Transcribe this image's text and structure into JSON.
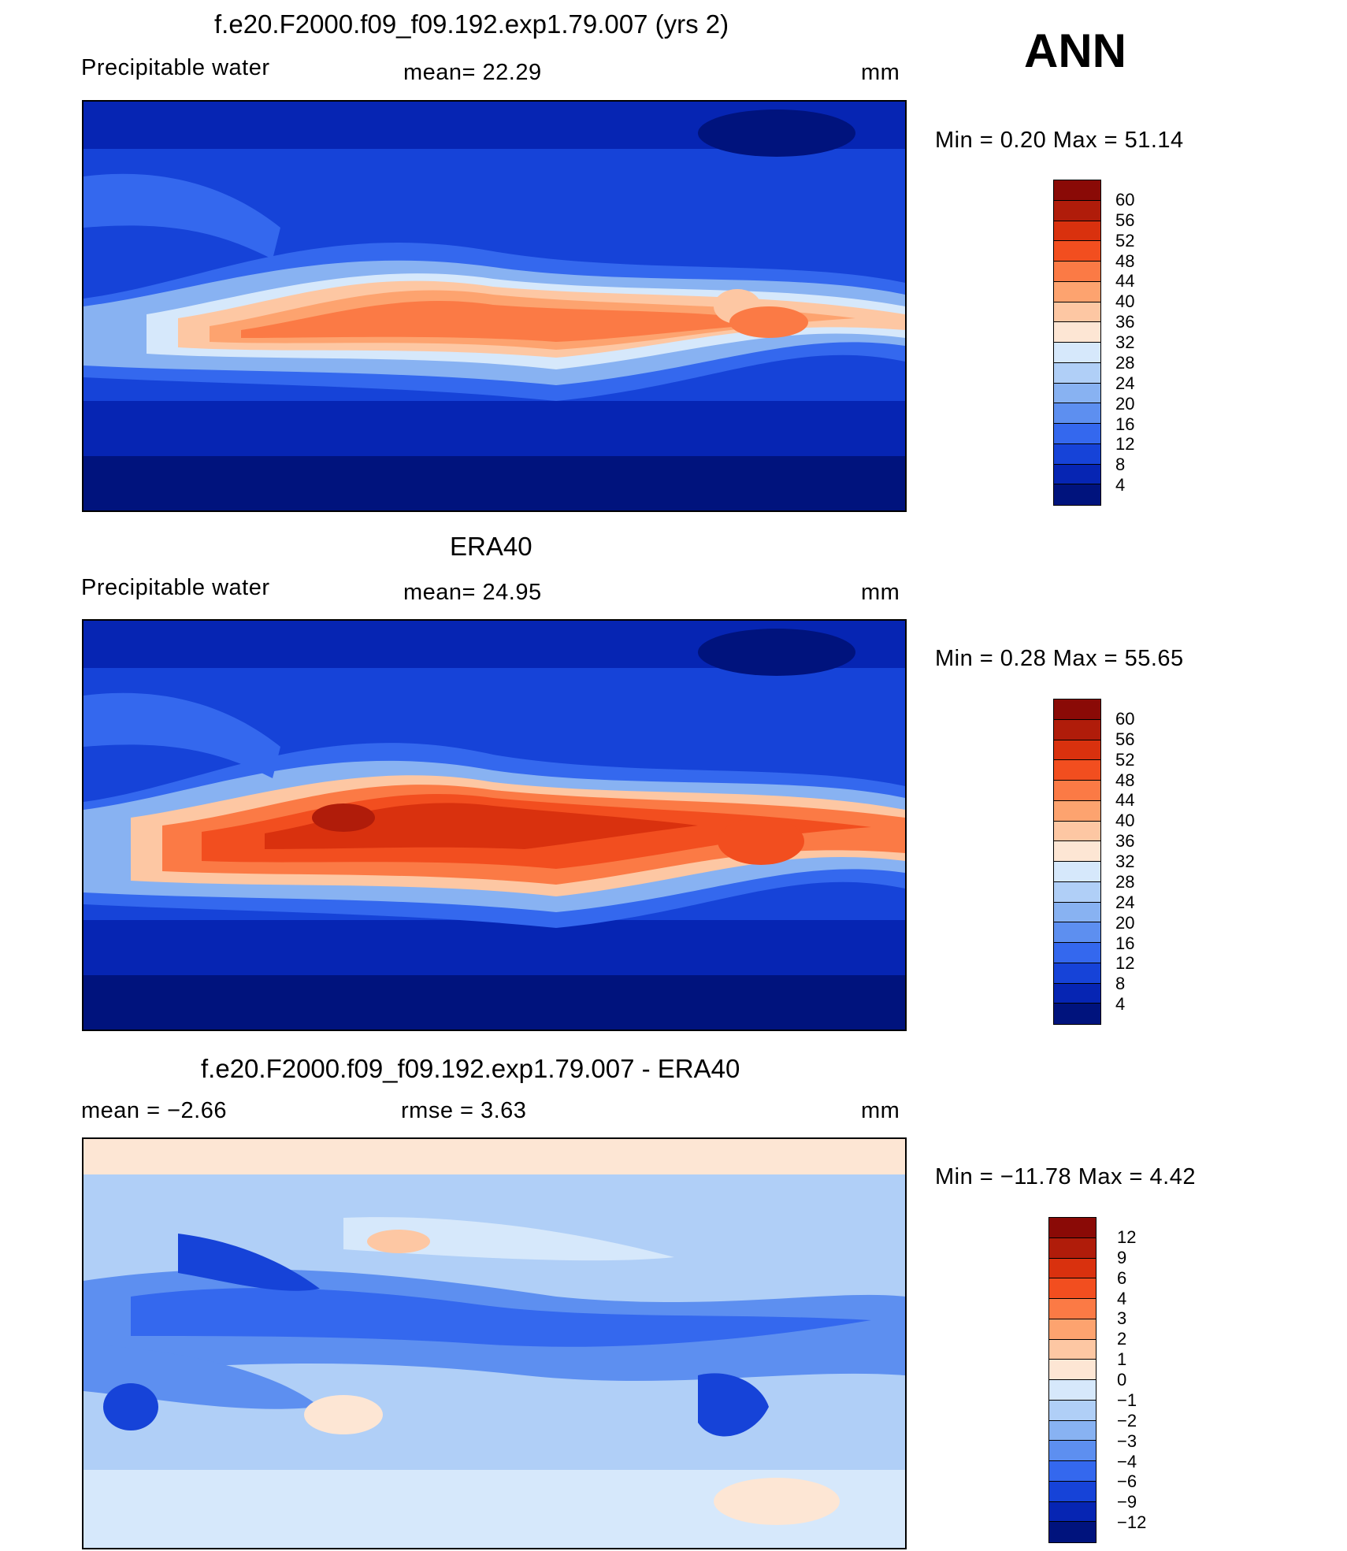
{
  "season": "ANN",
  "panels": [
    {
      "title": "f.e20.F2000.f09_f09.192.exp1.79.007 (yrs 2)",
      "left_label": "Precipitable  water",
      "mid_label": "mean=   22.29",
      "units": "mm",
      "minmax": "Min  =     0.20  Max  =    51.14",
      "colorbar": {
        "levels": [
          "60",
          "56",
          "52",
          "48",
          "44",
          "40",
          "36",
          "32",
          "28",
          "24",
          "20",
          "16",
          "12",
          "8",
          "4"
        ],
        "colors": [
          "#8a0a06",
          "#b01c0a",
          "#d9310e",
          "#f24e1f",
          "#fb7a45",
          "#fda36f",
          "#fdc7a3",
          "#fde6d4",
          "#d6e8fb",
          "#b0cff7",
          "#88b2f2",
          "#5d8ff0",
          "#3468ee",
          "#1643d8",
          "#0625b3",
          "#00137d"
        ]
      }
    },
    {
      "title": "ERA40",
      "left_label": "Precipitable  water",
      "mid_label": "mean=   24.95",
      "units": "mm",
      "minmax": "Min  =     0.28  Max  =    55.65",
      "colorbar": {
        "levels": [
          "60",
          "56",
          "52",
          "48",
          "44",
          "40",
          "36",
          "32",
          "28",
          "24",
          "20",
          "16",
          "12",
          "8",
          "4"
        ],
        "colors": [
          "#8a0a06",
          "#b01c0a",
          "#d9310e",
          "#f24e1f",
          "#fb7a45",
          "#fda36f",
          "#fdc7a3",
          "#fde6d4",
          "#d6e8fb",
          "#b0cff7",
          "#88b2f2",
          "#5d8ff0",
          "#3468ee",
          "#1643d8",
          "#0625b3",
          "#00137d"
        ]
      }
    },
    {
      "title": "f.e20.F2000.f09_f09.192.exp1.79.007 - ERA40",
      "left_label": "mean  =    −2.66",
      "mid_label": "rmse  =     3.63",
      "units": "mm",
      "minmax": "Min  = −11.78  Max  =     4.42",
      "colorbar": {
        "levels": [
          "12",
          "9",
          "6",
          "4",
          "3",
          "2",
          "1",
          "0",
          "−1",
          "−2",
          "−3",
          "−4",
          "−6",
          "−9",
          "−12"
        ],
        "colors": [
          "#8a0a06",
          "#b01c0a",
          "#d9310e",
          "#f24e1f",
          "#fb7a45",
          "#fda36f",
          "#fdc7a3",
          "#fde6d4",
          "#d6e8fb",
          "#b0cff7",
          "#88b2f2",
          "#5d8ff0",
          "#3468ee",
          "#1643d8",
          "#0625b3",
          "#00137d"
        ]
      }
    }
  ]
}
